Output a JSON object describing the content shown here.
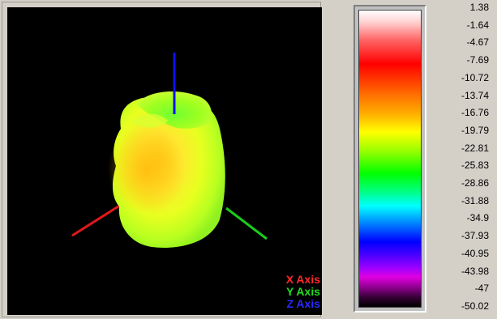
{
  "viewer": {
    "axes_legend": [
      {
        "label": "X Axis",
        "color": "#ff2a2a"
      },
      {
        "label": "Y Axis",
        "color": "#22dd22"
      },
      {
        "label": "Z Axis",
        "color": "#2a2aff"
      }
    ]
  },
  "colorbar": {
    "ticks": [
      "1.38",
      "-1.64",
      "-4.67",
      "-7.69",
      "-10.72",
      "-13.74",
      "-16.76",
      "-19.79",
      "-22.81",
      "-25.83",
      "-28.86",
      "-31.88",
      "-34.9",
      "-37.93",
      "-40.95",
      "-43.98",
      "-47",
      "-50.02"
    ]
  }
}
